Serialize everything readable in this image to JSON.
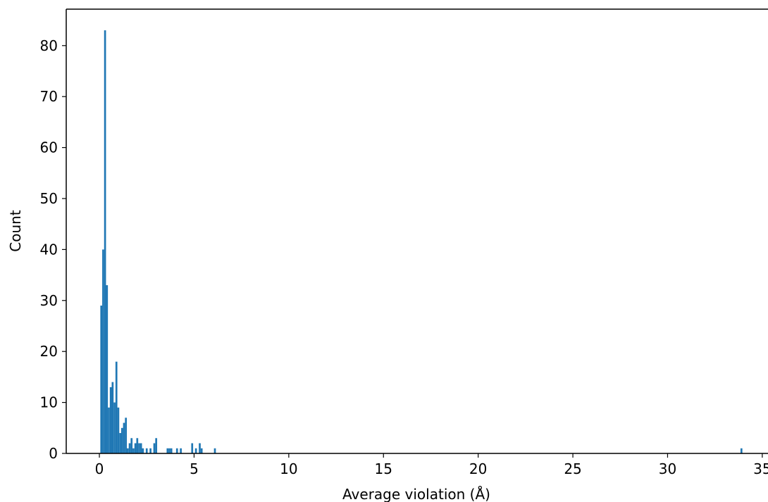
{
  "chart_data": {
    "type": "bar",
    "title": "",
    "xlabel": "Average violation (Å)",
    "ylabel": "Count",
    "xlim": [
      -1.75,
      35.6
    ],
    "ylim": [
      0,
      87.15
    ],
    "xticks": [
      0,
      5,
      10,
      15,
      20,
      25,
      30,
      35
    ],
    "yticks": [
      0,
      10,
      20,
      30,
      40,
      50,
      60,
      70,
      80
    ],
    "bin_width": 0.1,
    "grid": false,
    "bar_color": "#1f77b4",
    "bins": [
      {
        "x": 0.1,
        "count": 29
      },
      {
        "x": 0.2,
        "count": 40
      },
      {
        "x": 0.3,
        "count": 83
      },
      {
        "x": 0.4,
        "count": 33
      },
      {
        "x": 0.5,
        "count": 9
      },
      {
        "x": 0.6,
        "count": 13
      },
      {
        "x": 0.7,
        "count": 14
      },
      {
        "x": 0.8,
        "count": 10
      },
      {
        "x": 0.9,
        "count": 18
      },
      {
        "x": 1.0,
        "count": 9
      },
      {
        "x": 1.1,
        "count": 4
      },
      {
        "x": 1.2,
        "count": 5
      },
      {
        "x": 1.3,
        "count": 6
      },
      {
        "x": 1.4,
        "count": 7
      },
      {
        "x": 1.5,
        "count": 1
      },
      {
        "x": 1.6,
        "count": 2
      },
      {
        "x": 1.7,
        "count": 3
      },
      {
        "x": 1.8,
        "count": 1
      },
      {
        "x": 1.9,
        "count": 2
      },
      {
        "x": 2.0,
        "count": 3
      },
      {
        "x": 2.1,
        "count": 2
      },
      {
        "x": 2.2,
        "count": 2
      },
      {
        "x": 2.3,
        "count": 1
      },
      {
        "x": 2.5,
        "count": 1
      },
      {
        "x": 2.7,
        "count": 1
      },
      {
        "x": 2.9,
        "count": 2
      },
      {
        "x": 3.0,
        "count": 3
      },
      {
        "x": 3.6,
        "count": 1
      },
      {
        "x": 3.7,
        "count": 1
      },
      {
        "x": 3.8,
        "count": 1
      },
      {
        "x": 4.1,
        "count": 1
      },
      {
        "x": 4.3,
        "count": 1
      },
      {
        "x": 4.9,
        "count": 2
      },
      {
        "x": 5.1,
        "count": 1
      },
      {
        "x": 5.3,
        "count": 2
      },
      {
        "x": 5.4,
        "count": 1
      },
      {
        "x": 6.1,
        "count": 1
      },
      {
        "x": 33.9,
        "count": 1
      }
    ]
  }
}
